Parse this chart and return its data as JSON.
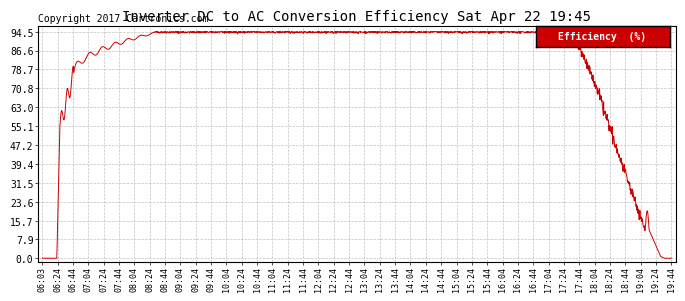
{
  "title": "Inverter DC to AC Conversion Efficiency Sat Apr 22 19:45",
  "copyright": "Copyright 2017 Cartronics.com",
  "legend_label": "Efficiency  (%)",
  "legend_bg": "#cc0000",
  "legend_text_color": "#ffffff",
  "line_color": "#cc0000",
  "background_color": "#ffffff",
  "grid_color": "#bbbbbb",
  "yticks": [
    0.0,
    7.9,
    15.7,
    23.6,
    31.5,
    39.4,
    47.2,
    55.1,
    63.0,
    70.8,
    78.7,
    86.6,
    94.5
  ],
  "ylim": [
    0.0,
    94.5
  ],
  "xtick_labels": [
    "06:03",
    "06:24",
    "06:44",
    "07:04",
    "07:24",
    "07:44",
    "08:04",
    "08:24",
    "08:44",
    "09:04",
    "09:24",
    "09:44",
    "10:04",
    "10:24",
    "10:44",
    "11:04",
    "11:24",
    "11:44",
    "12:04",
    "12:24",
    "12:44",
    "13:04",
    "13:24",
    "13:44",
    "14:04",
    "14:24",
    "14:44",
    "15:04",
    "15:24",
    "15:44",
    "16:04",
    "16:24",
    "16:44",
    "17:04",
    "17:24",
    "17:44",
    "18:04",
    "18:24",
    "18:44",
    "19:04",
    "19:24",
    "19:44"
  ],
  "title_fontsize": 10,
  "copyright_fontsize": 7,
  "tick_fontsize": 7,
  "legend_fontsize": 7
}
